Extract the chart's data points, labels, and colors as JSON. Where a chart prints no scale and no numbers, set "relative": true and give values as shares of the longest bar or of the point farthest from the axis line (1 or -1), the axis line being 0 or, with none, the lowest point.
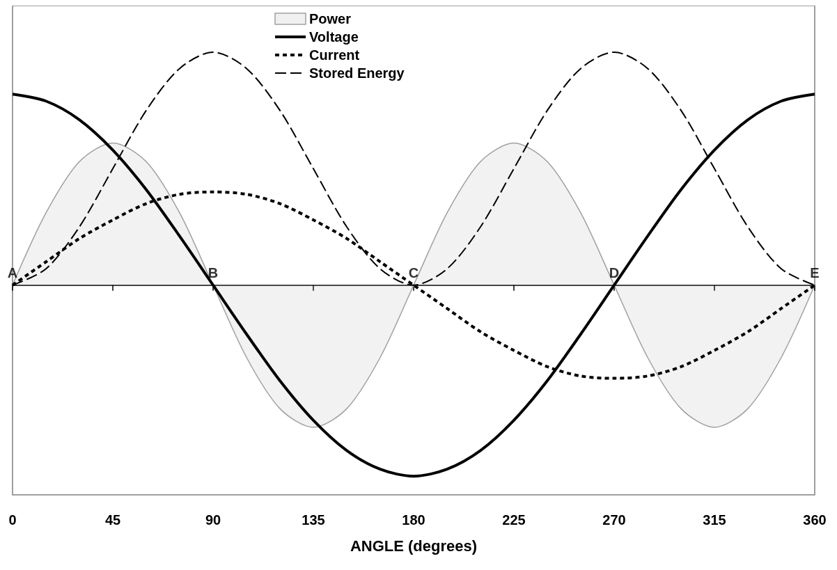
{
  "chart_data": {
    "type": "line",
    "xlabel": "ANGLE (degrees)",
    "relative": true,
    "x": [
      0,
      15,
      30,
      45,
      60,
      75,
      90,
      105,
      120,
      135,
      150,
      165,
      180,
      195,
      210,
      225,
      240,
      255,
      270,
      285,
      300,
      315,
      330,
      345,
      360
    ],
    "xlim": [
      0,
      360
    ],
    "xticks": [
      0,
      45,
      90,
      135,
      180,
      225,
      270,
      315,
      360
    ],
    "legend": "top",
    "marker": "none",
    "grid": false,
    "series": [
      {
        "name": "Power",
        "type": "area",
        "color": "#a0a0a0",
        "line_style": "solid",
        "values": [
          0,
          0.31,
          0.53,
          0.61,
          0.53,
          0.31,
          0,
          -0.31,
          -0.53,
          -0.61,
          -0.53,
          -0.31,
          0,
          0.31,
          0.53,
          0.61,
          0.53,
          0.31,
          0,
          -0.31,
          -0.53,
          -0.61,
          -0.53,
          -0.31,
          0
        ]
      },
      {
        "name": "Voltage",
        "color": "#000000",
        "line_style": "solid",
        "values": [
          0.82,
          0.79,
          0.71,
          0.58,
          0.41,
          0.21,
          0,
          -0.21,
          -0.41,
          -0.58,
          -0.71,
          -0.79,
          -0.82,
          -0.79,
          -0.71,
          -0.58,
          -0.41,
          -0.21,
          0,
          0.21,
          0.41,
          0.58,
          0.71,
          0.79,
          0.82
        ]
      },
      {
        "name": "Current",
        "color": "#000000",
        "line_style": "dotted",
        "values": [
          0,
          0.1,
          0.2,
          0.28,
          0.35,
          0.39,
          0.4,
          0.39,
          0.35,
          0.28,
          0.2,
          0.1,
          0,
          -0.1,
          -0.2,
          -0.28,
          -0.35,
          -0.39,
          -0.4,
          -0.39,
          -0.35,
          -0.28,
          -0.2,
          -0.1,
          0
        ]
      },
      {
        "name": "Stored Energy",
        "color": "#000000",
        "line_style": "dashed",
        "values": [
          0,
          0.07,
          0.25,
          0.5,
          0.75,
          0.93,
          1,
          0.93,
          0.75,
          0.5,
          0.25,
          0.07,
          0,
          0.07,
          0.25,
          0.5,
          0.75,
          0.93,
          1,
          0.93,
          0.75,
          0.5,
          0.25,
          0.07,
          0
        ]
      }
    ],
    "annotations": [
      {
        "text": "A",
        "x": 0,
        "y": 0
      },
      {
        "text": "B",
        "x": 90,
        "y": 0
      },
      {
        "text": "C",
        "x": 180,
        "y": 0
      },
      {
        "text": "D",
        "x": 270,
        "y": 0
      },
      {
        "text": "E",
        "x": 360,
        "y": 0
      }
    ]
  }
}
